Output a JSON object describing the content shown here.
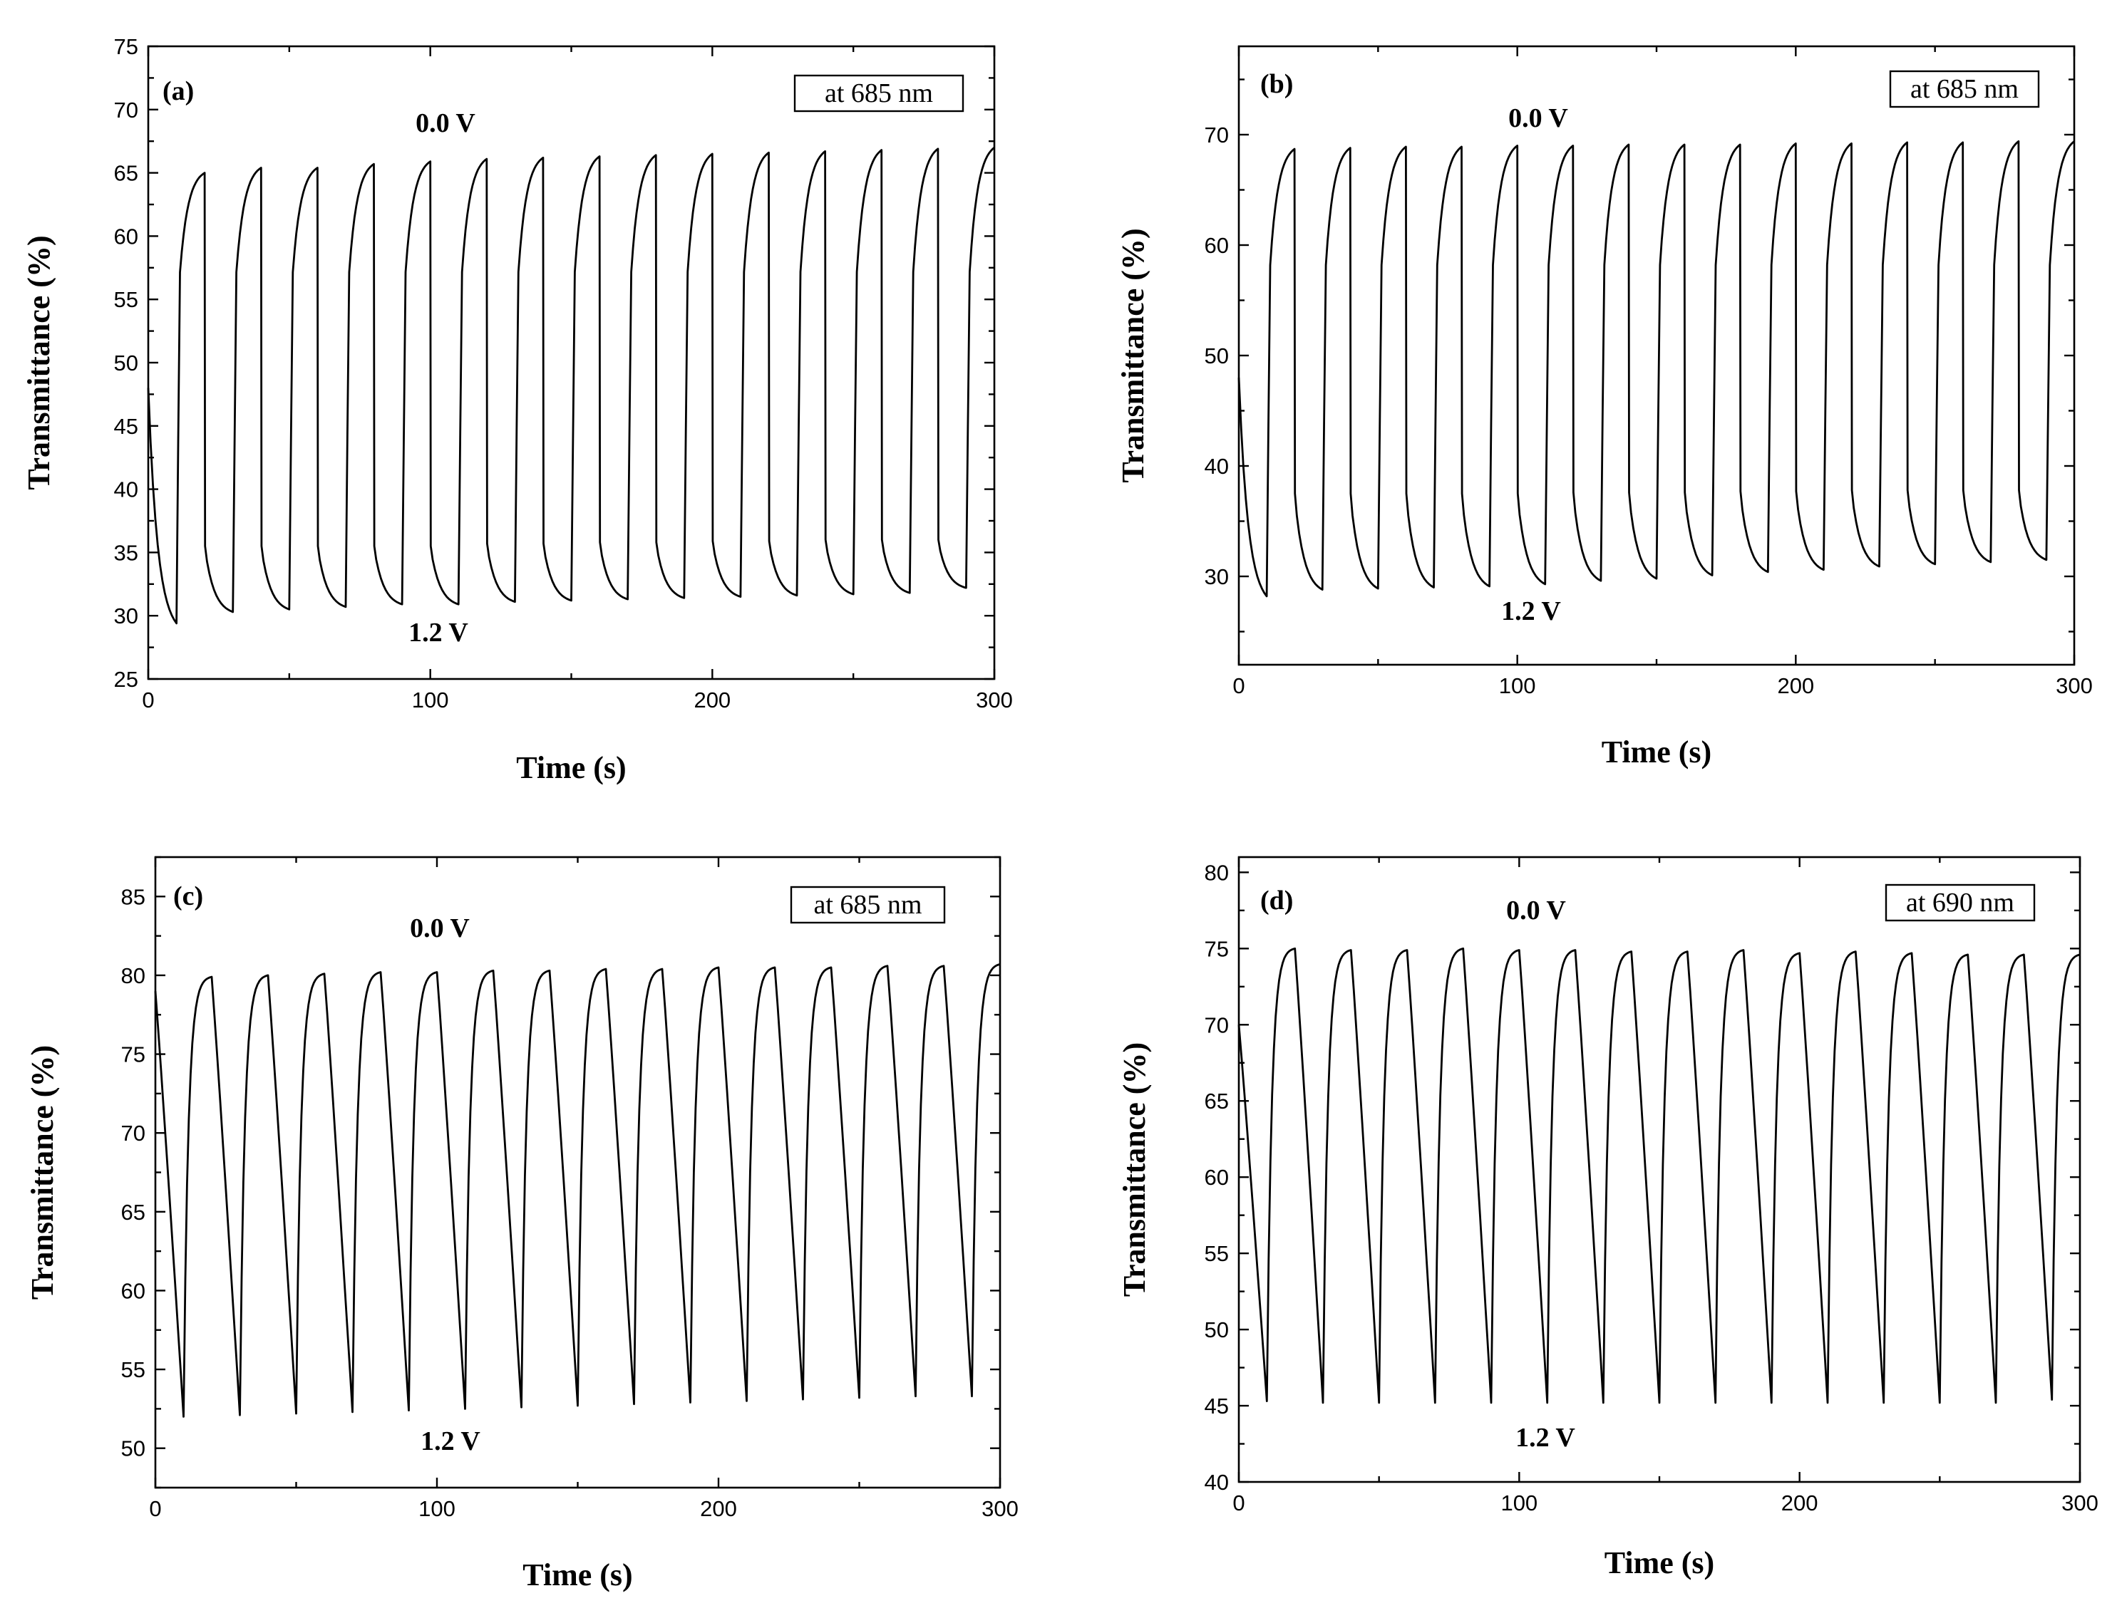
{
  "figure": {
    "background": "#ffffff",
    "line_color": "#000000"
  },
  "chart_data": [
    {
      "type": "line",
      "panel_label": "(a)",
      "wavelength_label": "at 685 nm",
      "annotation_top": "0.0 V",
      "annotation_bottom": "1.2 V",
      "xlabel": "Time (s)",
      "ylabel": "Transmittance (%)",
      "xlim": [
        0,
        300
      ],
      "ylim": [
        25,
        75
      ],
      "xticks": [
        0,
        100,
        200,
        300
      ],
      "xtick_labels": [
        "0",
        "100",
        "200",
        "300"
      ],
      "yticks": [
        25,
        30,
        35,
        40,
        45,
        50,
        55,
        60,
        65,
        70,
        75
      ],
      "ytick_labels": [
        "25",
        "30",
        "35",
        "40",
        "45",
        "50",
        "55",
        "60",
        "65",
        "70",
        "75"
      ],
      "cycle_period_s": 20,
      "initial_value": 48,
      "peaks": [
        65.0,
        65.4,
        65.4,
        65.7,
        65.9,
        66.1,
        66.2,
        66.3,
        66.4,
        66.5,
        66.6,
        66.7,
        66.8,
        66.9,
        67.0
      ],
      "troughs": [
        29.4,
        30.3,
        30.5,
        30.7,
        30.9,
        30.9,
        31.1,
        31.2,
        31.3,
        31.4,
        31.5,
        31.6,
        31.7,
        31.8,
        32.2
      ],
      "switch_to_dark_value": [
        35.5,
        35.5,
        35.5,
        35.5,
        35.5,
        35.5,
        35.7,
        35.7,
        35.8,
        35.8,
        35.9,
        35.9,
        36.0,
        36.0,
        36.0
      ],
      "switch_to_bright_value": [
        57,
        57,
        57,
        57,
        57,
        57,
        57,
        57,
        57,
        57,
        57,
        57,
        57,
        57,
        57
      ]
    },
    {
      "type": "line",
      "panel_label": "(b)",
      "wavelength_label": "at 685 nm",
      "annotation_top": "0.0 V",
      "annotation_bottom": "1.2 V",
      "xlabel": "Time (s)",
      "ylabel": "Transmittance (%)",
      "xlim": [
        0,
        300
      ],
      "ylim": [
        22,
        78
      ],
      "xticks": [
        0,
        100,
        200,
        300
      ],
      "xtick_labels": [
        "0",
        "100",
        "200",
        "300"
      ],
      "yticks": [
        30,
        40,
        50,
        60,
        70
      ],
      "ytick_labels": [
        "30",
        "40",
        "50",
        "60",
        "70"
      ],
      "cycle_period_s": 20,
      "initial_value": 48,
      "peaks": [
        68.7,
        68.8,
        68.9,
        68.9,
        69.0,
        69.0,
        69.1,
        69.1,
        69.1,
        69.2,
        69.2,
        69.3,
        69.3,
        69.4,
        69.4
      ],
      "troughs": [
        28.2,
        28.8,
        28.9,
        29.0,
        29.1,
        29.3,
        29.6,
        29.8,
        30.1,
        30.4,
        30.6,
        30.9,
        31.1,
        31.3,
        31.5
      ],
      "switch_to_dark_value": [
        37.5,
        37.5,
        37.5,
        37.5,
        37.5,
        37.5,
        37.6,
        37.6,
        37.6,
        37.7,
        37.7,
        37.8,
        37.8,
        37.8,
        37.8
      ],
      "switch_to_bright_value": [
        58,
        58,
        58,
        58,
        58,
        58,
        58,
        58,
        58,
        58,
        58,
        58,
        58,
        58,
        58
      ]
    },
    {
      "type": "line",
      "panel_label": "(c)",
      "wavelength_label": "at 685 nm",
      "annotation_top": "0.0 V",
      "annotation_bottom": "1.2 V",
      "xlabel": "Time (s)",
      "ylabel": "Transmittance (%)",
      "xlim": [
        0,
        300
      ],
      "ylim": [
        47.5,
        87.5
      ],
      "xticks": [
        0,
        100,
        200,
        300
      ],
      "xtick_labels": [
        "0",
        "100",
        "200",
        "300"
      ],
      "yticks": [
        50,
        55,
        60,
        65,
        70,
        75,
        80,
        85
      ],
      "ytick_labels": [
        "50",
        "55",
        "60",
        "65",
        "70",
        "75",
        "80",
        "85"
      ],
      "cycle_period_s": 20,
      "initial_value": 79,
      "peaks": [
        79.9,
        80.0,
        80.1,
        80.2,
        80.2,
        80.3,
        80.3,
        80.4,
        80.4,
        80.5,
        80.5,
        80.5,
        80.6,
        80.6,
        80.7
      ],
      "troughs": [
        52.0,
        52.1,
        52.2,
        52.3,
        52.4,
        52.5,
        52.6,
        52.7,
        52.8,
        52.9,
        53.0,
        53.1,
        53.2,
        53.3,
        53.3
      ]
    },
    {
      "type": "line",
      "panel_label": "(d)",
      "wavelength_label": "at 690 nm",
      "annotation_top": "0.0 V",
      "annotation_bottom": "1.2 V",
      "xlabel": "Time (s)",
      "ylabel": "Transmittance (%)",
      "xlim": [
        0,
        300
      ],
      "ylim": [
        40,
        81
      ],
      "xticks": [
        0,
        100,
        200,
        300
      ],
      "xtick_labels": [
        "0",
        "100",
        "200",
        "300"
      ],
      "yticks": [
        40,
        45,
        50,
        55,
        60,
        65,
        70,
        75,
        80
      ],
      "ytick_labels": [
        "40",
        "45",
        "50",
        "55",
        "60",
        "65",
        "70",
        "75",
        "80"
      ],
      "cycle_period_s": 20,
      "initial_value": 70,
      "peaks": [
        75.0,
        74.9,
        74.9,
        75.0,
        74.9,
        74.9,
        74.8,
        74.8,
        74.9,
        74.7,
        74.8,
        74.7,
        74.6,
        74.6,
        74.6
      ],
      "troughs": [
        45.3,
        45.2,
        45.2,
        45.2,
        45.2,
        45.2,
        45.2,
        45.2,
        45.2,
        45.2,
        45.2,
        45.2,
        45.2,
        45.2,
        45.4
      ]
    }
  ]
}
